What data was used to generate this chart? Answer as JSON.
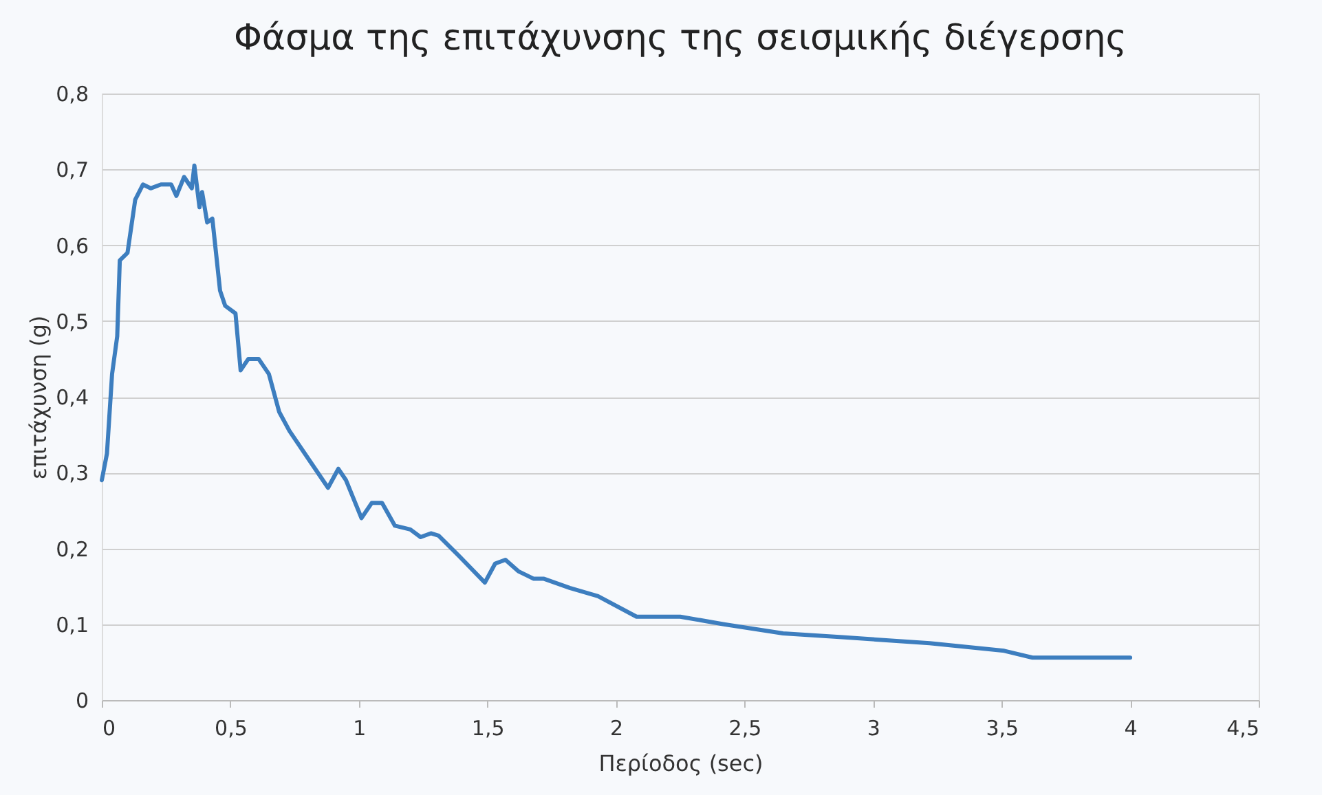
{
  "chart_data": {
    "type": "line",
    "title": "Φάσμα της επιτάχυνσης της σεισμικής διέγερσης",
    "xlabel": "Περίοδος (sec)",
    "ylabel": "επιτάχυνση (g)",
    "x": [
      0,
      0.02,
      0.04,
      0.06,
      0.07,
      0.1,
      0.13,
      0.16,
      0.19,
      0.23,
      0.27,
      0.29,
      0.32,
      0.34,
      0.35,
      0.36,
      0.38,
      0.39,
      0.41,
      0.43,
      0.46,
      0.48,
      0.52,
      0.54,
      0.57,
      0.61,
      0.65,
      0.69,
      0.73,
      0.8,
      0.88,
      0.92,
      0.95,
      1.01,
      1.05,
      1.09,
      1.14,
      1.2,
      1.24,
      1.28,
      1.31,
      1.39,
      1.49,
      1.53,
      1.57,
      1.62,
      1.68,
      1.72,
      1.82,
      1.93,
      2.08,
      2.25,
      2.42,
      2.65,
      2.88,
      3.22,
      3.51,
      3.62,
      3.8,
      4.0
    ],
    "series": [
      {
        "color": "#3d7ebf",
        "values": [
          0.29,
          0.325,
          0.43,
          0.48,
          0.58,
          0.59,
          0.66,
          0.68,
          0.675,
          0.68,
          0.68,
          0.665,
          0.69,
          0.68,
          0.675,
          0.705,
          0.65,
          0.67,
          0.63,
          0.635,
          0.54,
          0.52,
          0.51,
          0.435,
          0.45,
          0.45,
          0.43,
          0.38,
          0.355,
          0.32,
          0.28,
          0.305,
          0.29,
          0.24,
          0.26,
          0.26,
          0.23,
          0.225,
          0.215,
          0.22,
          0.217,
          0.19,
          0.155,
          0.18,
          0.185,
          0.17,
          0.16,
          0.16,
          0.148,
          0.137,
          0.11,
          0.11,
          0.1,
          0.088,
          0.083,
          0.075,
          0.065,
          0.056,
          0.056,
          0.056
        ]
      }
    ],
    "xlim": [
      0,
      4.5
    ],
    "ylim": [
      0,
      0.8
    ],
    "xticks": [
      0,
      {
        "value": 0.5,
        "label": "0,5"
      },
      1,
      {
        "value": 1.5,
        "label": "1,5"
      },
      2,
      {
        "value": 2.5,
        "label": "2,5"
      },
      3,
      {
        "value": 3.5,
        "label": "3,5"
      },
      4,
      {
        "value": 4.5,
        "label": "4,5"
      }
    ],
    "yticks": [
      0,
      {
        "value": 0.1,
        "label": "0,1"
      },
      {
        "value": 0.2,
        "label": "0,2"
      },
      {
        "value": 0.3,
        "label": "0,3"
      },
      {
        "value": 0.4,
        "label": "0,4"
      },
      {
        "value": 0.5,
        "label": "0,5"
      },
      {
        "value": 0.6,
        "label": "0,6"
      },
      {
        "value": 0.7,
        "label": "0,7"
      },
      {
        "value": 0.8,
        "label": "0,8"
      }
    ],
    "grid": "y",
    "marker": "none",
    "line_style": "solid"
  }
}
